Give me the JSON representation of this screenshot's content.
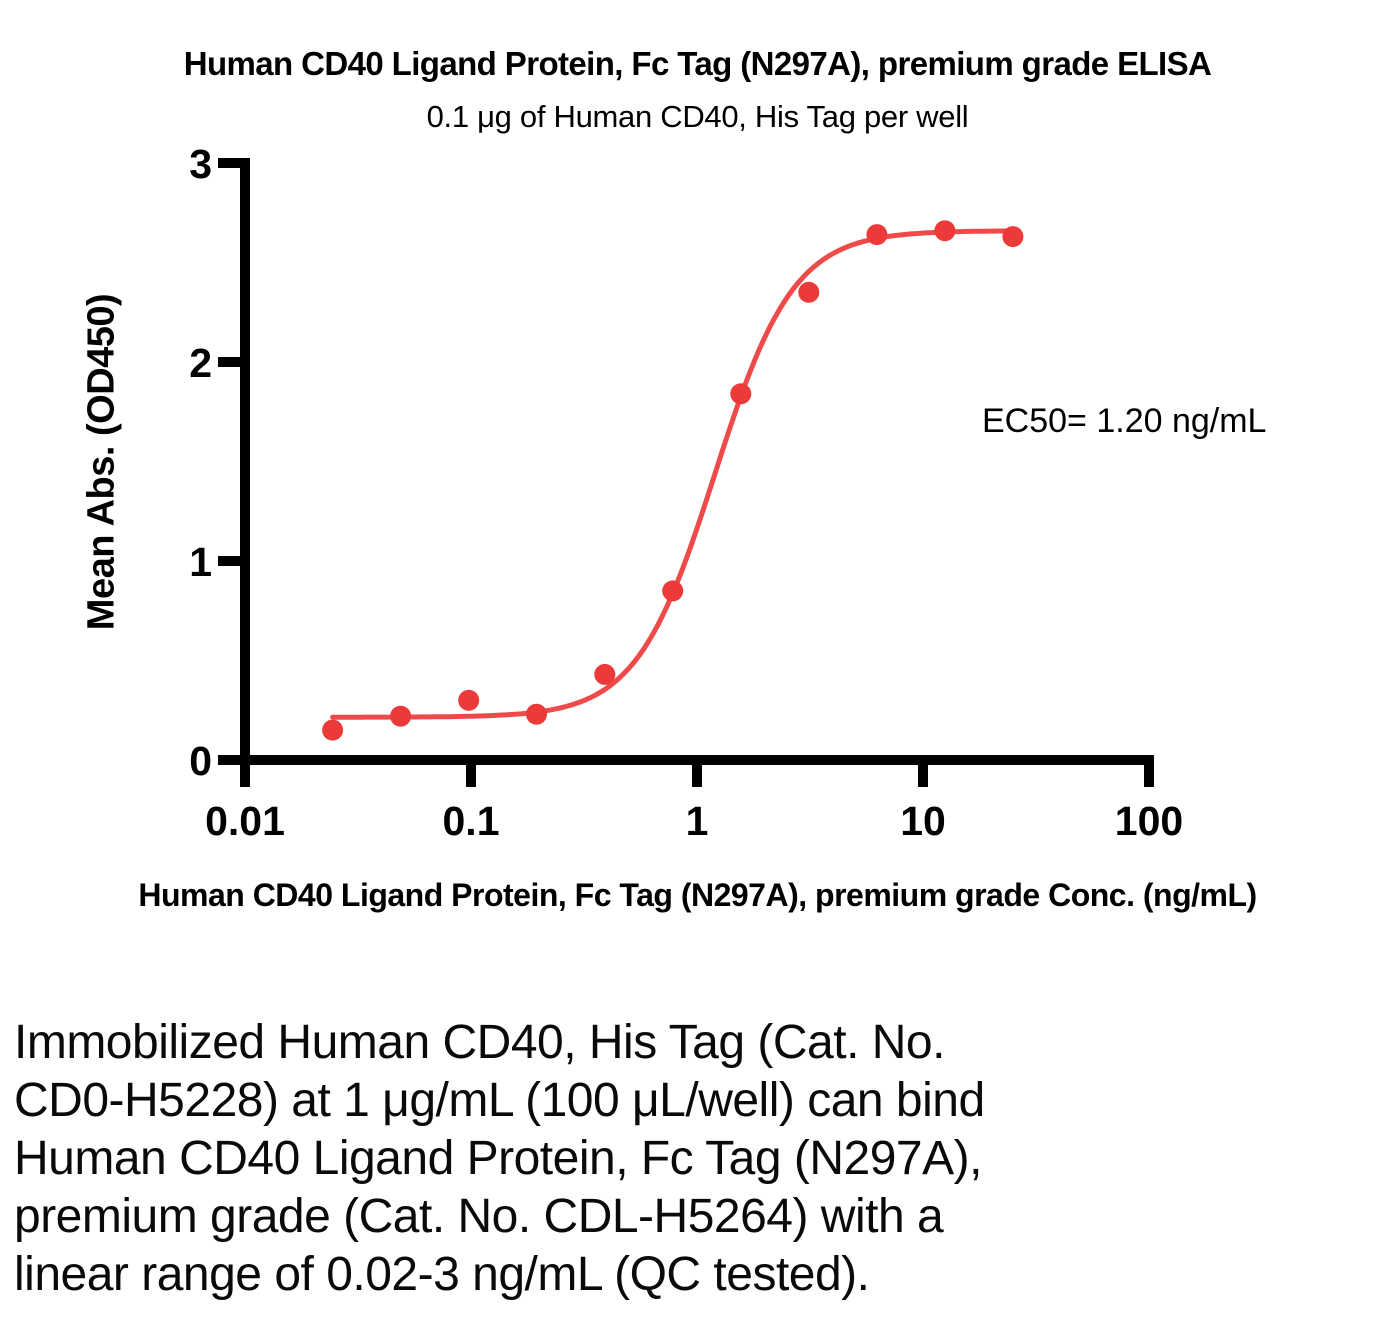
{
  "chart_data": {
    "type": "scatter",
    "title": "Human CD40 Ligand Protein, Fc Tag (N297A), premium grade ELISA",
    "subtitle": "0.1 μg of Human CD40, His Tag per well",
    "xlabel": "Human CD40 Ligand Protein, Fc Tag (N297A), premium grade Conc. (ng/mL)",
    "ylabel": "Mean Abs. (OD450)",
    "ec50_label": "EC50= 1.20 ng/mL",
    "x_scale": "log",
    "xlim": [
      0.01,
      100
    ],
    "ylim": [
      0,
      3
    ],
    "x_ticks": [
      0.01,
      0.1,
      1,
      10,
      100
    ],
    "x_tick_labels": [
      "0.01",
      "0.1",
      "1",
      "10",
      "100"
    ],
    "y_ticks": [
      0,
      1,
      2,
      3
    ],
    "y_tick_labels": [
      "0",
      "1",
      "2",
      "3"
    ],
    "grid": false,
    "legend": "none",
    "points": {
      "x": [
        0.0244,
        0.0488,
        0.0977,
        0.195,
        0.391,
        0.781,
        1.5625,
        3.125,
        6.25,
        12.5,
        25
      ],
      "y": [
        0.15,
        0.22,
        0.3,
        0.23,
        0.43,
        0.85,
        1.84,
        2.35,
        2.64,
        2.66,
        2.63
      ]
    },
    "fit_curve": {
      "model": "4PL",
      "bottom": 0.215,
      "top": 2.66,
      "ec50": 1.2,
      "hill": 2.5,
      "x_start": 0.0244,
      "x_end": 25
    },
    "marker_color": "#EC3A3A",
    "curve_color": "#EF4A4A",
    "axis_color": "#000000"
  },
  "description": {
    "text": "Immobilized Human CD40, His Tag (Cat. No.\nCD0-H5228) at 1 μg/mL (100 μL/well) can bind\nHuman CD40 Ligand Protein, Fc Tag (N297A),\npremium grade (Cat. No. CDL-H5264) with a\nlinear range of 0.02-3 ng/mL (QC tested)."
  }
}
